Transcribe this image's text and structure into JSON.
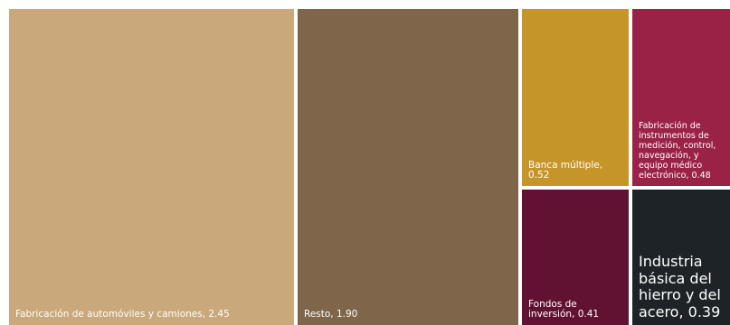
{
  "chart_data": {
    "type": "treemap",
    "title": "",
    "items": [
      {
        "name": "Fabricación de automóviles y camiones",
        "value": 2.45,
        "color": "#c9a87b",
        "label": "Fabricación de automóviles y camiones, 2.45"
      },
      {
        "name": "Resto",
        "value": 1.9,
        "color": "#7f6549",
        "label": "Resto, 1.90"
      },
      {
        "name": "Banca múltiple",
        "value": 0.52,
        "color": "#c6952a",
        "label": "Banca múltiple, 0.52"
      },
      {
        "name": "Fabricación de instrumentos de medición, control, navegación, y equipo médico electrónico",
        "value": 0.48,
        "color": "#9b2247",
        "label": "Fabricación de instrumentos de medición, control, navegación, y equipo médico electrónico, 0.48"
      },
      {
        "name": "Fondos de inversión",
        "value": 0.41,
        "color": "#611232",
        "label": "Fondos de inversión, 0.41"
      },
      {
        "name": "Industria básica del hierro y del acero",
        "value": 0.39,
        "color": "#1d2326",
        "label": "Industria básica del hierro y del acero, 0.39"
      }
    ]
  }
}
